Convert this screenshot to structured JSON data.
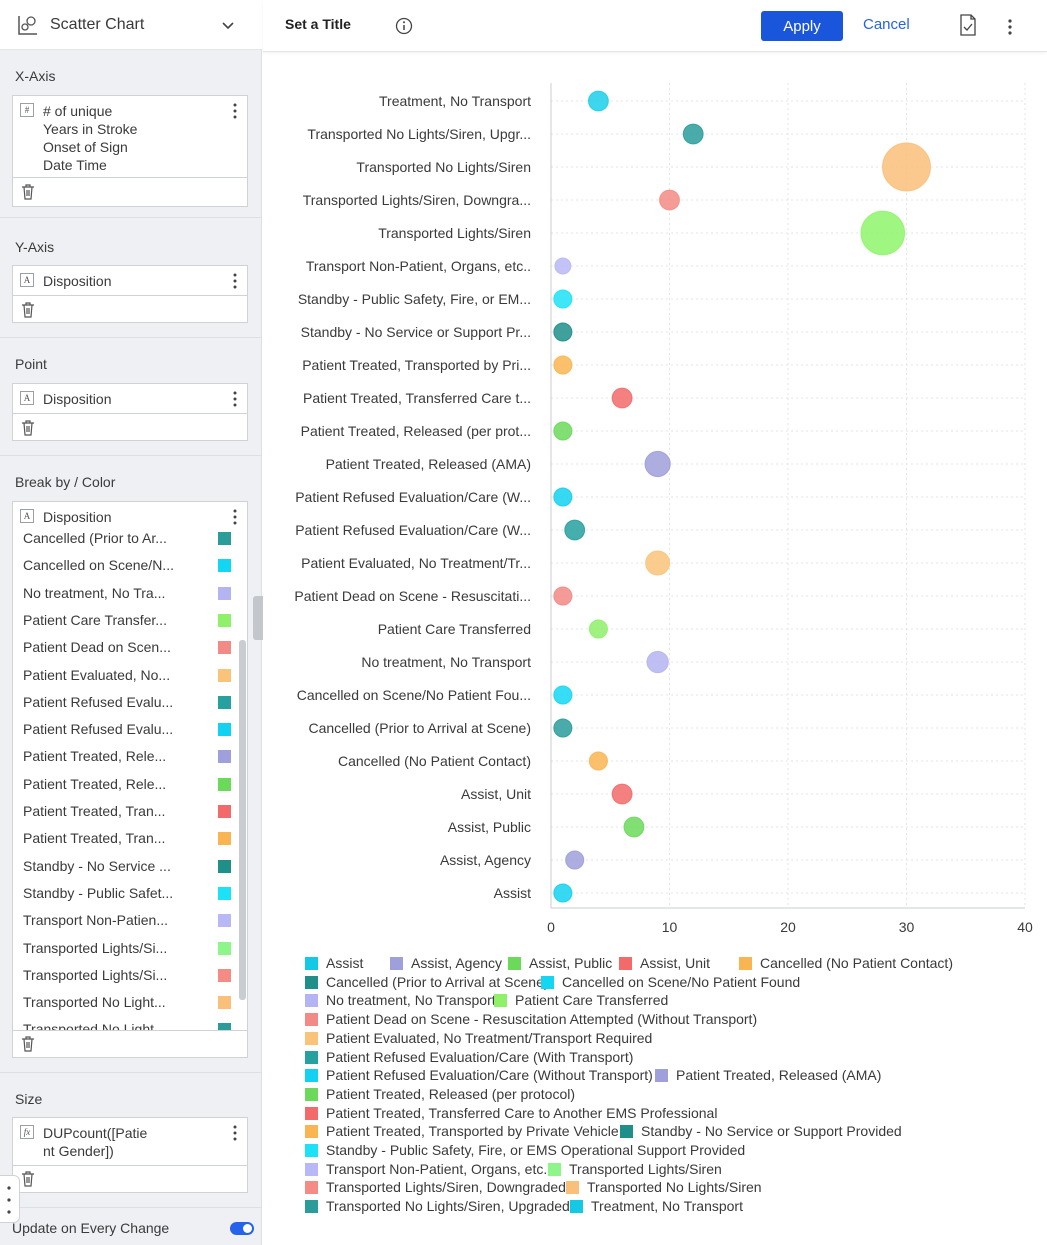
{
  "left_panel": {
    "chart_type": "Scatter Chart",
    "x_axis": {
      "title": "X-Axis",
      "field": [
        "# of unique",
        "Years in Stroke",
        "Onset of Sign",
        "Date Time"
      ],
      "badge": "#"
    },
    "y_axis": {
      "title": "Y-Axis",
      "field": "Disposition",
      "badge": "A"
    },
    "point": {
      "title": "Point",
      "field": "Disposition",
      "badge": "A"
    },
    "break_by": {
      "title": "Break by / Color",
      "field": "Disposition",
      "badge": "A",
      "items": [
        {
          "label": "Cancelled (Prior to Ar...",
          "color": "#2a9d9b"
        },
        {
          "label": "Cancelled on Scene/N...",
          "color": "#13d7f2"
        },
        {
          "label": "No treatment, No Tra...",
          "color": "#b5b4f2"
        },
        {
          "label": "Patient Care Transfer...",
          "color": "#8ff06a"
        },
        {
          "label": "Patient Dead on Scen...",
          "color": "#f28a86"
        },
        {
          "label": "Patient Evaluated, No...",
          "color": "#f9c47a"
        },
        {
          "label": "Patient Refused Evalu...",
          "color": "#27a0a0"
        },
        {
          "label": "Patient Refused Evalu...",
          "color": "#13d1f0"
        },
        {
          "label": "Patient Treated, Rele...",
          "color": "#9f9fdb"
        },
        {
          "label": "Patient Treated, Rele...",
          "color": "#6bd95a"
        },
        {
          "label": "Patient Treated, Tran...",
          "color": "#f26a6a"
        },
        {
          "label": "Patient Treated, Tran...",
          "color": "#f9b552"
        },
        {
          "label": "Standby - No Service ...",
          "color": "#1f8f8a"
        },
        {
          "label": "Standby - Public Safet...",
          "color": "#1ce2f7"
        },
        {
          "label": "Transport Non-Patien...",
          "color": "#b9b8f7"
        },
        {
          "label": "Transported Lights/Si...",
          "color": "#8ef58a"
        },
        {
          "label": "Transported Lights/Si...",
          "color": "#f48b84"
        },
        {
          "label": "Transported No Light...",
          "color": "#fac07a"
        },
        {
          "label": "Transported No Light...",
          "color": "#2a9d9b"
        }
      ]
    },
    "size": {
      "title": "Size",
      "field": [
        "DUPcount([Patie",
        "nt Gender])"
      ],
      "badge": "fx"
    },
    "update_label": "Update on Every Change"
  },
  "header": {
    "title": "Set a Title",
    "apply": "Apply",
    "cancel": "Cancel"
  },
  "chart_data": {
    "type": "scatter",
    "xlim": [
      0,
      40
    ],
    "x_ticks": [
      0,
      10,
      20,
      30,
      40
    ],
    "grid": true,
    "legend_placement": "bottom",
    "categories": [
      "Treatment, No Transport",
      "Transported No Lights/Siren, Upgr...",
      "Transported No Lights/Siren",
      "Transported Lights/Siren, Downgra...",
      "Transported Lights/Siren",
      "Transport Non-Patient, Organs, etc..",
      "Standby - Public Safety, Fire, or EM...",
      "Standby - No Service or Support Pr...",
      "Patient Treated, Transported by Pri...",
      "Patient Treated, Transferred Care t...",
      "Patient Treated, Released (per prot...",
      "Patient Treated, Released (AMA)",
      "Patient Refused Evaluation/Care (W...",
      "Patient Refused Evaluation/Care (W...",
      "Patient Evaluated, No Treatment/Tr...",
      "Patient Dead on Scene - Resuscitati...",
      "Patient Care Transferred",
      "No treatment, No Transport",
      "Cancelled on Scene/No Patient Fou...",
      "Cancelled (Prior to Arrival at Scene)",
      "Cancelled (No Patient Contact)",
      "Assist, Unit",
      "Assist, Public",
      "Assist, Agency",
      "Assist"
    ],
    "points": [
      {
        "x": 4,
        "size": 2,
        "color": "#1ccfe9"
      },
      {
        "x": 12,
        "size": 2,
        "color": "#2a9d9b"
      },
      {
        "x": 30,
        "size": 20,
        "color": "#fac07a"
      },
      {
        "x": 10,
        "size": 2,
        "color": "#f48b84"
      },
      {
        "x": 28,
        "size": 16,
        "color": "#8ef56a"
      },
      {
        "x": 1,
        "size": 1,
        "color": "#b9b8f7"
      },
      {
        "x": 1,
        "size": 1.5,
        "color": "#1ce2f7"
      },
      {
        "x": 1,
        "size": 1.5,
        "color": "#1f8f8a"
      },
      {
        "x": 1,
        "size": 1.5,
        "color": "#f9b552"
      },
      {
        "x": 6,
        "size": 2,
        "color": "#f26a6a"
      },
      {
        "x": 1,
        "size": 1.5,
        "color": "#6bd95a"
      },
      {
        "x": 9,
        "size": 4,
        "color": "#9f9fdb"
      },
      {
        "x": 1,
        "size": 1.5,
        "color": "#13d1f0"
      },
      {
        "x": 2,
        "size": 2,
        "color": "#27a0a0"
      },
      {
        "x": 9,
        "size": 3.5,
        "color": "#f9c47a"
      },
      {
        "x": 1,
        "size": 1.5,
        "color": "#f28a86"
      },
      {
        "x": 4,
        "size": 1.5,
        "color": "#8ff06a"
      },
      {
        "x": 9,
        "size": 2.5,
        "color": "#b5b4f2"
      },
      {
        "x": 1,
        "size": 1.5,
        "color": "#13d7f2"
      },
      {
        "x": 1,
        "size": 1.5,
        "color": "#2a9d9b"
      },
      {
        "x": 4,
        "size": 1.5,
        "color": "#f9b552"
      },
      {
        "x": 6,
        "size": 2,
        "color": "#f26a6a"
      },
      {
        "x": 7,
        "size": 2,
        "color": "#6bd95a"
      },
      {
        "x": 2,
        "size": 1.5,
        "color": "#9f9fdb"
      },
      {
        "x": 1,
        "size": 1.5,
        "color": "#13d1f0"
      }
    ],
    "legend": [
      {
        "label": "Assist",
        "color": "#13c9e6"
      },
      {
        "label": "Assist, Agency",
        "color": "#9f9fdb"
      },
      {
        "label": "Assist, Public",
        "color": "#6bd95a"
      },
      {
        "label": "Assist, Unit",
        "color": "#f26a6a"
      },
      {
        "label": "Cancelled (No Patient Contact)",
        "color": "#f9b552"
      },
      {
        "label": "Cancelled (Prior to Arrival at Scene)",
        "color": "#1f8f8a"
      },
      {
        "label": "Cancelled on Scene/No Patient Found",
        "color": "#13d7f2"
      },
      {
        "label": "No treatment, No Transport",
        "color": "#b5b4f2"
      },
      {
        "label": "Patient Care Transferred",
        "color": "#8ff06a"
      },
      {
        "label": "Patient Dead on Scene - Resuscitation Attempted (Without Transport)",
        "color": "#f28a86"
      },
      {
        "label": "Patient Evaluated, No Treatment/Transport Required",
        "color": "#f9c47a"
      },
      {
        "label": "Patient Refused Evaluation/Care (With Transport)",
        "color": "#27a0a0"
      },
      {
        "label": "Patient Refused Evaluation/Care (Without Transport)",
        "color": "#13d1f0"
      },
      {
        "label": "Patient Treated, Released (AMA)",
        "color": "#9f9fdb"
      },
      {
        "label": "Patient Treated, Released (per protocol)",
        "color": "#6bd95a"
      },
      {
        "label": "Patient Treated, Transferred Care to Another EMS Professional",
        "color": "#f26a6a"
      },
      {
        "label": "Patient Treated, Transported by Private Vehicle",
        "color": "#f9b552"
      },
      {
        "label": "Standby - No Service or Support Provided",
        "color": "#1f8f8a"
      },
      {
        "label": "Standby - Public Safety, Fire, or EMS Operational Support Provided",
        "color": "#1ce2f7"
      },
      {
        "label": "Transport Non-Patient, Organs, etc..",
        "color": "#b9b8f7"
      },
      {
        "label": "Transported Lights/Siren",
        "color": "#8ef58a"
      },
      {
        "label": "Transported Lights/Siren, Downgraded",
        "color": "#f48b84"
      },
      {
        "label": "Transported No Lights/Siren",
        "color": "#fac07a"
      },
      {
        "label": "Transported No Lights/Siren, Upgraded",
        "color": "#2a9d9b"
      },
      {
        "label": "Treatment, No Transport",
        "color": "#13c9e6"
      }
    ]
  }
}
